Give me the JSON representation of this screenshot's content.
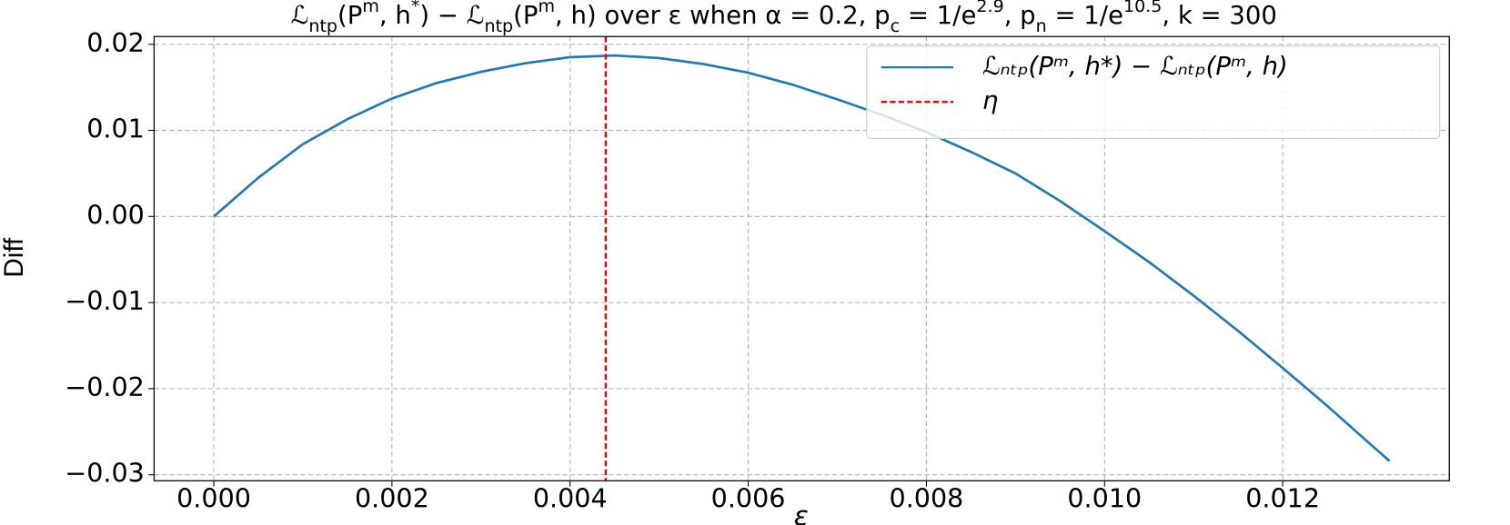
{
  "chart_data": {
    "type": "line",
    "title": [
      {
        "text": "ℒ"
      },
      {
        "text": "ntp",
        "script": "sub"
      },
      {
        "text": "(P"
      },
      {
        "text": "m",
        "script": "sup"
      },
      {
        "text": ", h"
      },
      {
        "text": "*",
        "script": "sup"
      },
      {
        "text": ") − ℒ"
      },
      {
        "text": "ntp",
        "script": "sub"
      },
      {
        "text": "(P"
      },
      {
        "text": "m",
        "script": "sup"
      },
      {
        "text": ", h) over ε when α = 0.2, p"
      },
      {
        "text": "c",
        "script": "sub"
      },
      {
        "text": " = 1/e"
      },
      {
        "text": "2.9",
        "script": "sup"
      },
      {
        "text": ", p"
      },
      {
        "text": "n",
        "script": "sub"
      },
      {
        "text": " = 1/e"
      },
      {
        "text": "10.5",
        "script": "sup"
      },
      {
        "text": ", k = 300"
      }
    ],
    "xlabel": "ε",
    "ylabel": "Diff",
    "x": [
      0,
      0.0005,
      0.001,
      0.0015,
      0.002,
      0.0025,
      0.003,
      0.0035,
      0.004,
      0.0045,
      0.005,
      0.0055,
      0.006,
      0.0065,
      0.007,
      0.0075,
      0.008,
      0.0085,
      0.009,
      0.0095,
      0.01,
      0.0105,
      0.011,
      0.0115,
      0.012,
      0.0125,
      0.013,
      0.0132
    ],
    "series": [
      {
        "name": "ℒₙₜₚ(Pᵐ, h*) − ℒₙₜₚ(Pᵐ, h)",
        "color": "#1f77b4",
        "values": [
          0,
          0.0045,
          0.0084,
          0.0113,
          0.0137,
          0.0155,
          0.0168,
          0.0178,
          0.0185,
          0.0187,
          0.0184,
          0.0177,
          0.0167,
          0.0153,
          0.0136,
          0.0118,
          0.0098,
          0.0075,
          0.005,
          0.0018,
          -0.0017,
          -0.0053,
          -0.0092,
          -0.0133,
          -0.0176,
          -0.022,
          -0.0266,
          -0.0284
        ]
      }
    ],
    "vlines": [
      {
        "name": "η",
        "x": 0.0044,
        "color": "#ff0000",
        "style": "dashed"
      }
    ],
    "xlim": [
      -0.00067,
      0.01387
    ],
    "ylim": [
      -0.0307,
      0.0209
    ],
    "xticks": [
      {
        "value": 0,
        "label": "0.000"
      },
      0.002,
      0.004,
      0.006,
      0.008,
      {
        "value": 0.01,
        "label": "0.010"
      },
      0.012
    ],
    "yticks": [
      0.02,
      0.01,
      {
        "value": 0,
        "label": "0.00"
      },
      {
        "value": -0.01,
        "label": "−0.01"
      },
      {
        "value": -0.02,
        "label": "−0.02"
      },
      {
        "value": -0.03,
        "label": "−0.03"
      }
    ],
    "grid": true,
    "legend": "upper right"
  }
}
